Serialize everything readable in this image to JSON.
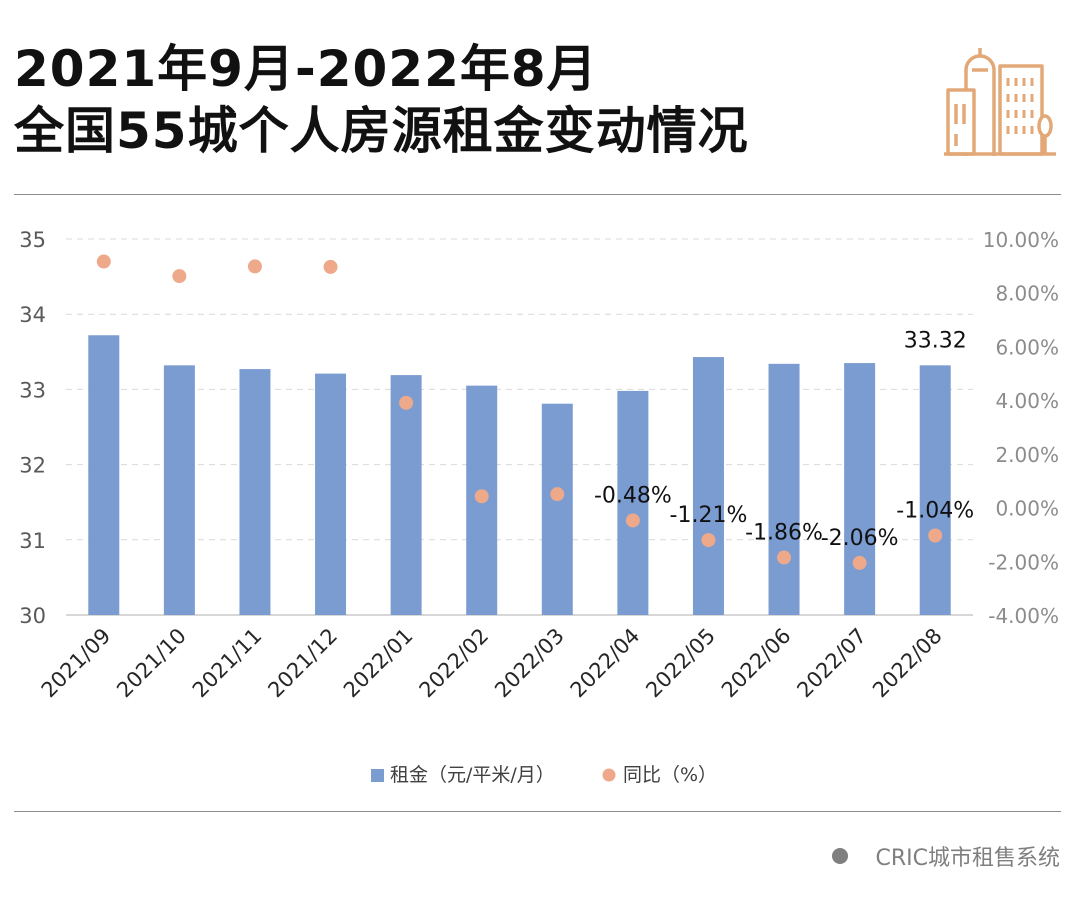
{
  "title": {
    "line1": "2021年9月-2022年8月",
    "line2": "全国55城个人房源租金变动情况"
  },
  "source": "CRIC城市租售系统",
  "icons": {
    "logo": "city-buildings-icon",
    "source_marker": "dot-icon"
  },
  "colors": {
    "bar": "#7a9cd1",
    "dot": "#eda98a",
    "logo": "#e3a877",
    "grid": "#d9d9d9",
    "text": "#111111",
    "axis_text": "#595959"
  },
  "chart_data": {
    "type": "bar",
    "categories": [
      "2021/09",
      "2021/10",
      "2021/11",
      "2021/12",
      "2022/01",
      "2022/02",
      "2022/03",
      "2022/04",
      "2022/05",
      "2022/06",
      "2022/07",
      "2022/08"
    ],
    "series": [
      {
        "name": "租金（元/平米/月）",
        "type": "bar",
        "axis": "left",
        "values": [
          33.72,
          33.32,
          33.27,
          33.21,
          33.19,
          33.05,
          32.81,
          32.98,
          33.43,
          33.34,
          33.35,
          33.32
        ]
      },
      {
        "name": "同比（%）",
        "type": "scatter",
        "axis": "right",
        "values": [
          9.16,
          8.62,
          8.98,
          8.96,
          3.9,
          0.42,
          0.5,
          -0.48,
          -1.21,
          -1.86,
          -2.06,
          -1.04
        ]
      }
    ],
    "data_labels": [
      {
        "series": 0,
        "index": 11,
        "text": "33.32"
      },
      {
        "series": 1,
        "index": 7,
        "text": "-0.48%"
      },
      {
        "series": 1,
        "index": 8,
        "text": "-1.21%"
      },
      {
        "series": 1,
        "index": 9,
        "text": "-1.86%"
      },
      {
        "series": 1,
        "index": 10,
        "text": "-2.06%"
      },
      {
        "series": 1,
        "index": 11,
        "text": "-1.04%"
      }
    ],
    "y_left": {
      "min": 30,
      "max": 35,
      "ticks": [
        "30",
        "31",
        "32",
        "33",
        "34",
        "35"
      ]
    },
    "y_right": {
      "min": -4,
      "max": 10,
      "ticks": [
        "-4.00%",
        "-2.00%",
        "0.00%",
        "2.00%",
        "4.00%",
        "6.00%",
        "8.00%",
        "10.00%"
      ]
    },
    "grid": true,
    "legend": "bottom"
  }
}
